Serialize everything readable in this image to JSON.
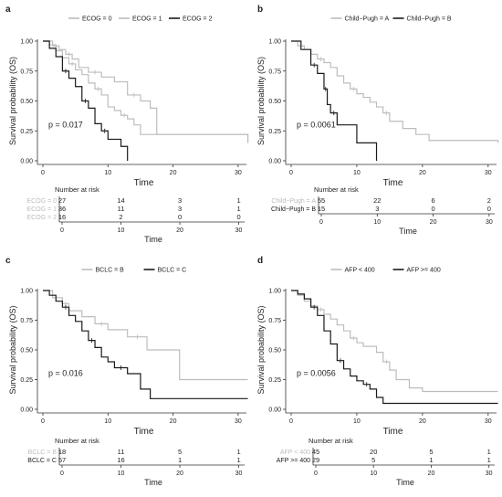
{
  "colors": {
    "light": "#bdbdbd",
    "dark": "#1a1a1a",
    "axis": "#333333",
    "text": "#222222"
  },
  "chart_data": [
    {
      "panel": "a",
      "type": "line",
      "legend_prefix": "",
      "legend_position": "top",
      "xlabel": "Time",
      "ylabel": "Survival probability (OS)",
      "xlim": [
        0,
        31
      ],
      "ylim": [
        0,
        1
      ],
      "xticks": [
        "0",
        "10",
        "20",
        "30"
      ],
      "yticks": [
        "0.00",
        "0.25",
        "0.50",
        "0.75",
        "1.00"
      ],
      "pvalue": "p = 0.017",
      "risk_title": "Number at risk",
      "risk_times": [
        "0",
        "10",
        "20",
        "30"
      ],
      "series": [
        {
          "name": "ECOG = 0",
          "color": "light",
          "risk_label": "ECOG = 0",
          "risk_label_color": "light",
          "risk": [
            "27",
            "14",
            "3",
            "1"
          ],
          "x": [
            0,
            1.5,
            2.5,
            3.5,
            4.5,
            5.5,
            7,
            9,
            11,
            13,
            15,
            16.5,
            17.5,
            31.5
          ],
          "y": [
            1.0,
            0.96,
            0.93,
            0.89,
            0.85,
            0.78,
            0.74,
            0.7,
            0.66,
            0.55,
            0.5,
            0.44,
            0.22,
            0.15
          ]
        },
        {
          "name": "ECOG = 1",
          "color": "light",
          "risk_label": "ECOG = 1",
          "risk_label_color": "light",
          "risk": [
            "36",
            "11",
            "3",
            "1"
          ],
          "x": [
            0,
            1,
            2,
            3,
            4,
            5,
            6,
            7,
            8,
            9,
            10,
            11,
            12,
            13,
            14,
            15,
            31.5
          ],
          "y": [
            1.0,
            0.97,
            0.92,
            0.86,
            0.81,
            0.76,
            0.72,
            0.65,
            0.6,
            0.55,
            0.45,
            0.42,
            0.38,
            0.35,
            0.3,
            0.22,
            0.15
          ]
        },
        {
          "name": "ECOG = 2",
          "color": "dark",
          "risk_label": "ECOG = 2",
          "risk_label_color": "light",
          "risk": [
            "16",
            "2",
            "0",
            "0"
          ],
          "x": [
            0,
            1,
            2,
            3,
            4,
            5,
            6,
            7,
            8,
            9,
            10,
            12,
            13
          ],
          "y": [
            1.0,
            0.94,
            0.87,
            0.75,
            0.69,
            0.62,
            0.5,
            0.44,
            0.31,
            0.25,
            0.18,
            0.12,
            0.0
          ]
        }
      ]
    },
    {
      "panel": "b",
      "type": "line",
      "legend_prefix": "",
      "legend_position": "top",
      "xlabel": "Time",
      "ylabel": "Survival probability (OS)",
      "xlim": [
        0,
        31
      ],
      "ylim": [
        0,
        1
      ],
      "xticks": [
        "0",
        "10",
        "20",
        "30"
      ],
      "yticks": [
        "0.00",
        "0.25",
        "0.50",
        "0.75",
        "1.00"
      ],
      "pvalue": "p = 0.0061",
      "risk_title": "Number at risk",
      "risk_times": [
        "0",
        "10",
        "20",
        "30"
      ],
      "series": [
        {
          "name": "Child−Pugh = A",
          "color": "light",
          "risk_label": "Child−Pugh = A",
          "risk_label_color": "light",
          "risk": [
            "55",
            "22",
            "6",
            "2"
          ],
          "x": [
            0,
            1,
            2,
            3,
            4,
            5,
            6,
            7,
            8,
            9,
            10,
            11,
            12,
            13,
            14,
            15,
            17,
            19,
            21,
            31.5
          ],
          "y": [
            1.0,
            0.96,
            0.93,
            0.89,
            0.85,
            0.82,
            0.78,
            0.71,
            0.65,
            0.6,
            0.56,
            0.53,
            0.49,
            0.45,
            0.4,
            0.33,
            0.27,
            0.22,
            0.17,
            0.15
          ]
        },
        {
          "name": "Child−Pugh = B",
          "color": "dark",
          "risk_label": "Child−Pugh = B",
          "risk_label_color": "dark",
          "risk": [
            "15",
            "3",
            "0",
            "0"
          ],
          "x": [
            0,
            1.5,
            3,
            4,
            5,
            5.5,
            6,
            7,
            10,
            13
          ],
          "y": [
            1.0,
            0.93,
            0.8,
            0.73,
            0.6,
            0.47,
            0.4,
            0.3,
            0.15,
            0.0
          ]
        }
      ]
    },
    {
      "panel": "c",
      "type": "line",
      "legend_prefix": "",
      "legend_position": "top",
      "xlabel": "Time",
      "ylabel": "Survival probability (OS)",
      "xlim": [
        0,
        31
      ],
      "ylim": [
        0,
        1
      ],
      "xticks": [
        "0",
        "10",
        "20",
        "30"
      ],
      "yticks": [
        "0.00",
        "0.25",
        "0.50",
        "0.75",
        "1.00"
      ],
      "pvalue": "p = 0.016",
      "risk_title": "Number at risk",
      "risk_times": [
        "0",
        "10",
        "20",
        "30"
      ],
      "series": [
        {
          "name": "BCLC = B",
          "color": "light",
          "risk_label": "BCLC = B",
          "risk_label_color": "light",
          "risk": [
            "18",
            "11",
            "5",
            "1"
          ],
          "x": [
            0,
            1.5,
            3,
            4,
            6,
            8,
            10,
            13,
            16,
            21,
            31.5
          ],
          "y": [
            1.0,
            0.94,
            0.89,
            0.83,
            0.78,
            0.72,
            0.67,
            0.61,
            0.5,
            0.25,
            0.25
          ]
        },
        {
          "name": "BCLC = C",
          "color": "dark",
          "risk_label": "BCLC = C",
          "risk_label_color": "dark",
          "risk": [
            "57",
            "16",
            "1",
            "1"
          ],
          "x": [
            0,
            1,
            2,
            3,
            4,
            5,
            6,
            7,
            8,
            9,
            10,
            11,
            13,
            15,
            16.5,
            31.5
          ],
          "y": [
            1.0,
            0.96,
            0.91,
            0.86,
            0.79,
            0.74,
            0.66,
            0.58,
            0.52,
            0.44,
            0.4,
            0.35,
            0.3,
            0.17,
            0.09,
            0.09
          ]
        }
      ]
    },
    {
      "panel": "d",
      "type": "line",
      "legend_prefix": "",
      "legend_position": "top",
      "xlabel": "Time",
      "ylabel": "Survival probability (OS)",
      "xlim": [
        0,
        31
      ],
      "ylim": [
        0,
        1
      ],
      "xticks": [
        "0",
        "10",
        "20",
        "30"
      ],
      "yticks": [
        "0.00",
        "0.25",
        "0.50",
        "0.75",
        "1.00"
      ],
      "pvalue": "p = 0.0056",
      "risk_title": "Number at risk",
      "risk_times": [
        "0",
        "10",
        "20",
        "30"
      ],
      "series": [
        {
          "name": "AFP < 400",
          "color": "light",
          "risk_label": "AFP < 400",
          "risk_label_color": "light",
          "risk": [
            "45",
            "20",
            "5",
            "1"
          ],
          "x": [
            0,
            1,
            2,
            3,
            4,
            5,
            6,
            7,
            8,
            9,
            10,
            11,
            12,
            13,
            14,
            15,
            16,
            18,
            20,
            31.5
          ],
          "y": [
            1.0,
            0.96,
            0.91,
            0.87,
            0.84,
            0.8,
            0.76,
            0.71,
            0.66,
            0.6,
            0.56,
            0.53,
            0.53,
            0.48,
            0.4,
            0.33,
            0.25,
            0.18,
            0.15,
            0.15
          ]
        },
        {
          "name": "AFP >= 400",
          "color": "dark",
          "risk_label": "AFP >= 400",
          "risk_label_color": "dark",
          "risk": [
            "29",
            "5",
            "1",
            "1"
          ],
          "x": [
            0,
            1,
            2,
            3,
            4,
            5,
            6,
            7,
            8,
            9,
            10,
            11,
            12,
            13,
            14,
            31.5
          ],
          "y": [
            1.0,
            0.97,
            0.93,
            0.86,
            0.79,
            0.66,
            0.55,
            0.41,
            0.34,
            0.28,
            0.24,
            0.21,
            0.17,
            0.1,
            0.05,
            0.05
          ]
        }
      ]
    }
  ]
}
